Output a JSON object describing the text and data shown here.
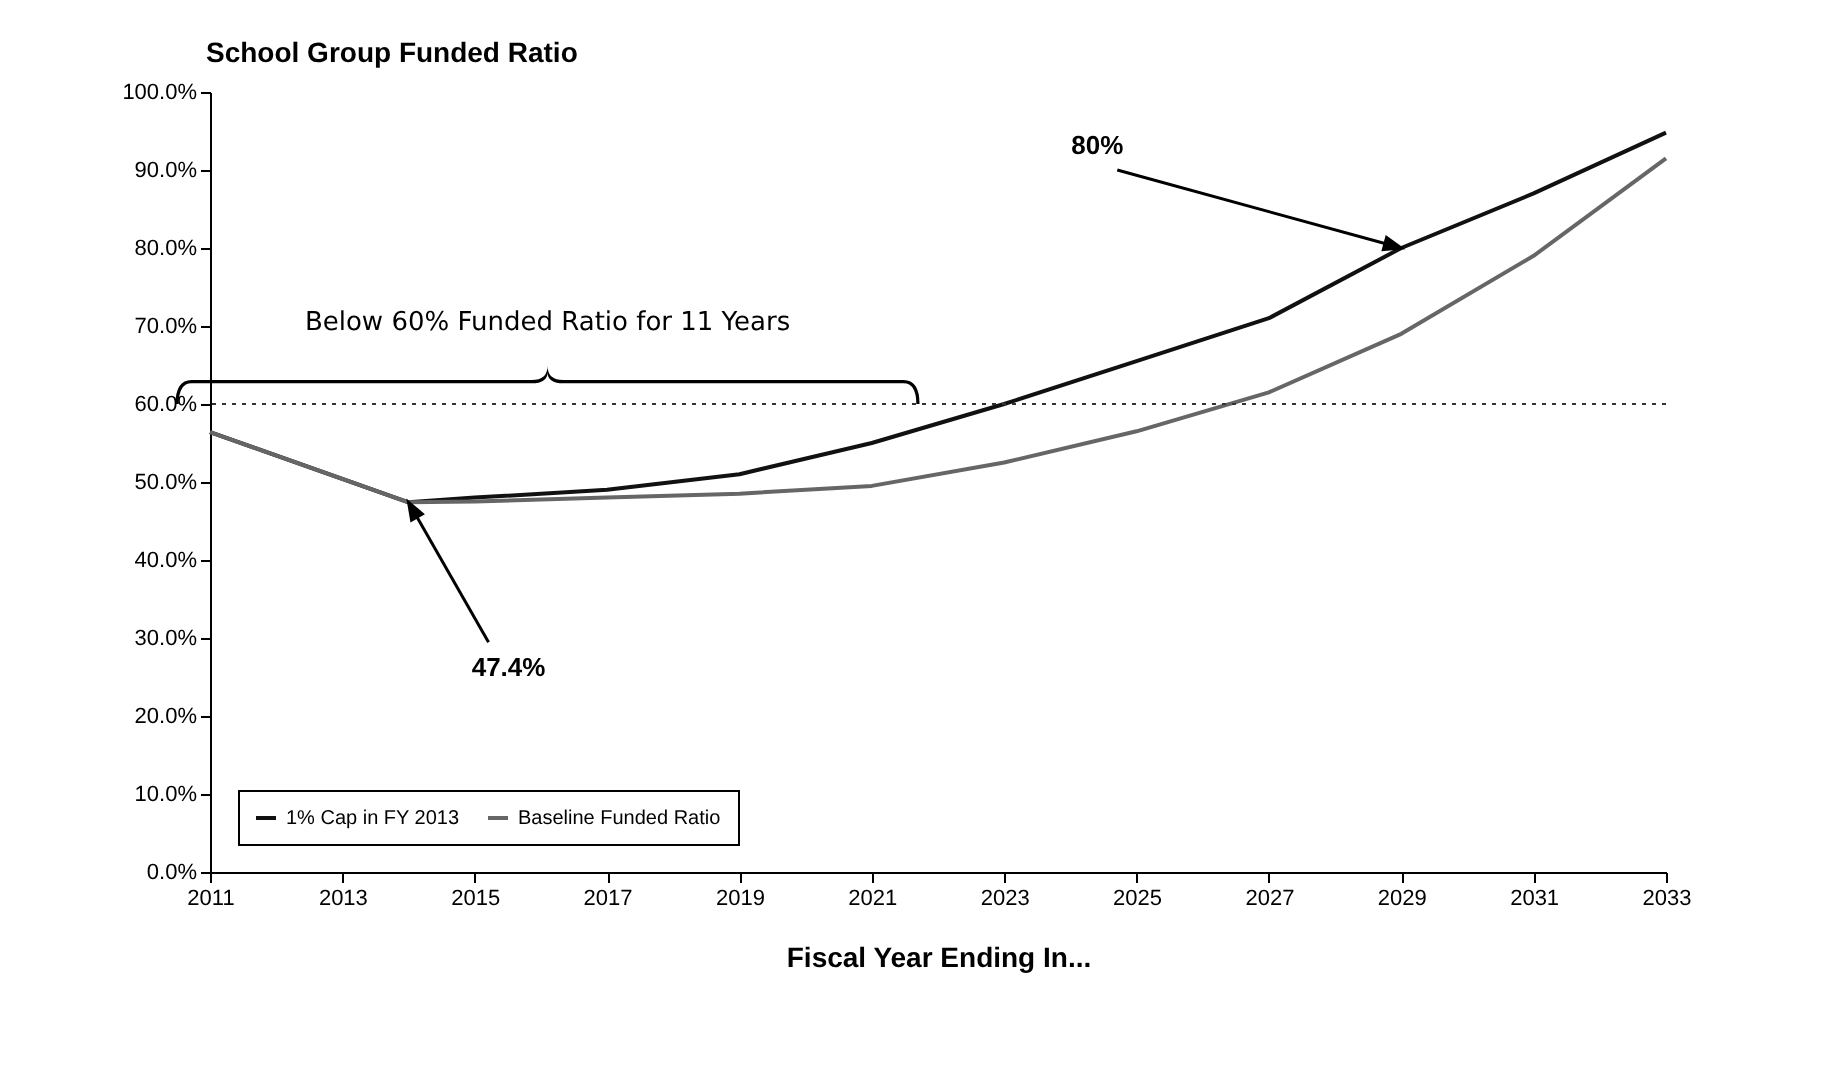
{
  "chart_data": {
    "type": "line",
    "title": "School Group Funded Ratio",
    "xlabel": "Fiscal Year Ending In...",
    "x": [
      2011,
      2014,
      2015,
      2017,
      2019,
      2021,
      2023,
      2025,
      2027,
      2029,
      2031,
      2033
    ],
    "series": [
      {
        "name": "1% Cap in FY 2013",
        "color": "#111111",
        "values": [
          56.4,
          47.4,
          48,
          49,
          51,
          55,
          60,
          65.5,
          71,
          80,
          87,
          94.8
        ]
      },
      {
        "name": "Baseline Funded Ratio",
        "color": "#666666",
        "values": [
          56.4,
          47.4,
          47.5,
          48,
          48.5,
          49.5,
          52.5,
          56.5,
          61.5,
          69,
          79,
          91.5
        ]
      }
    ],
    "xlim": [
      2011,
      2033
    ],
    "xticks": [
      2011,
      2013,
      2015,
      2017,
      2019,
      2021,
      2023,
      2025,
      2027,
      2029,
      2031,
      2033
    ],
    "ylim": [
      0,
      100
    ],
    "yticks": [
      {
        "value": 0,
        "label": "0.0%"
      },
      {
        "value": 10,
        "label": "10.0%"
      },
      {
        "value": 20,
        "label": "20.0%"
      },
      {
        "value": 30,
        "label": "30.0%"
      },
      {
        "value": 40,
        "label": "40.0%"
      },
      {
        "value": 50,
        "label": "50.0%"
      },
      {
        "value": 60,
        "label": "60.0%"
      },
      {
        "value": 70,
        "label": "70.0%"
      },
      {
        "value": 80,
        "label": "80.0%"
      },
      {
        "value": 90,
        "label": "90.0%"
      },
      {
        "value": 100,
        "label": "100.0%"
      }
    ],
    "ref_lines": [
      {
        "axis": "y",
        "value": 60,
        "line_style": "dotted",
        "color": "#333333"
      }
    ],
    "annotations": [
      {
        "text": "Below 60% Funded Ratio for 11 Years",
        "x": 2016.1,
        "y": 60
      },
      {
        "text": "80%",
        "x": 2029,
        "y": 80
      },
      {
        "text": "47.4%",
        "x": 2014,
        "y": 47.4
      }
    ],
    "legend": "bottom left",
    "marker": "none",
    "line_style": "solid",
    "grid": false
  }
}
